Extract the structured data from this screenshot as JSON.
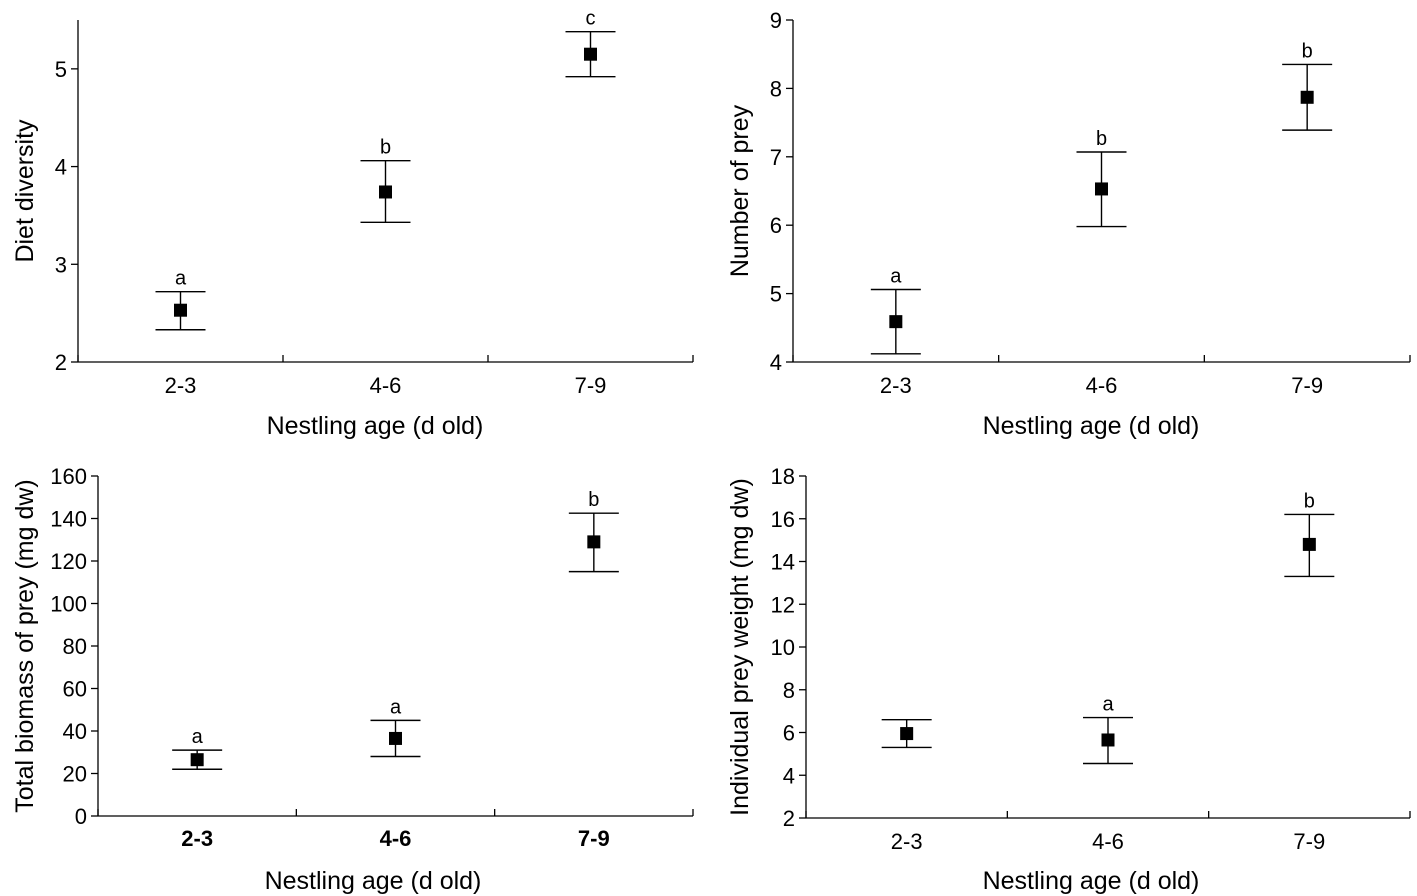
{
  "chart_data": [
    {
      "type": "scatter",
      "title": "",
      "xlabel": "Nestling age (d old)",
      "ylabel": "Diet diversity",
      "categories": [
        "2-3",
        "4-6",
        "7-9"
      ],
      "values": [
        2.53,
        3.74,
        5.15
      ],
      "error_low": [
        2.33,
        3.43,
        4.92
      ],
      "error_high": [
        2.72,
        4.06,
        5.38
      ],
      "labels": [
        "a",
        "b",
        "c"
      ],
      "ylim": [
        2,
        5.5
      ],
      "yticks": [
        2,
        3,
        4,
        5
      ],
      "ytick_labels": [
        "2",
        "3",
        "4",
        "5"
      ],
      "grid": false,
      "bold_x_ticks": false
    },
    {
      "type": "scatter",
      "title": "",
      "xlabel": "Nestling age (d old)",
      "ylabel": "Number of prey",
      "categories": [
        "2-3",
        "4-6",
        "7-9"
      ],
      "values": [
        4.59,
        6.53,
        7.87
      ],
      "error_low": [
        4.12,
        5.98,
        7.39
      ],
      "error_high": [
        5.06,
        7.07,
        8.35
      ],
      "labels": [
        "a",
        "b",
        "b"
      ],
      "ylim": [
        4,
        9
      ],
      "yticks": [
        4,
        5,
        6,
        7,
        8,
        9
      ],
      "ytick_labels": [
        "4",
        "5",
        "6",
        "7",
        "8",
        "9"
      ],
      "grid": false,
      "bold_x_ticks": false
    },
    {
      "type": "scatter",
      "title": "",
      "xlabel": "Nestling age (d old)",
      "ylabel": "Total biomass of prey (mg dw)",
      "categories": [
        "2-3",
        "4-6",
        "7-9"
      ],
      "values": [
        26.5,
        36.5,
        129
      ],
      "error_low": [
        22,
        28,
        115
      ],
      "error_high": [
        31,
        45,
        142.5
      ],
      "labels": [
        "a",
        "a",
        "b"
      ],
      "ylim": [
        0,
        160
      ],
      "yticks": [
        0,
        20,
        40,
        60,
        80,
        100,
        120,
        140,
        160
      ],
      "ytick_labels": [
        "0",
        "20",
        "40",
        "60",
        "80",
        "100",
        "120",
        "140",
        "160"
      ],
      "grid": false,
      "bold_x_ticks": true
    },
    {
      "type": "scatter",
      "title": "",
      "xlabel": "Nestling age (d old)",
      "ylabel": "Individual prey weight (mg dw)",
      "categories": [
        "2-3",
        "4-6",
        "7-9"
      ],
      "values": [
        5.95,
        5.65,
        14.8
      ],
      "error_low": [
        5.3,
        4.55,
        13.3
      ],
      "error_high": [
        6.6,
        6.7,
        16.2
      ],
      "labels": [
        "",
        "a",
        "b"
      ],
      "ylim": [
        2,
        18
      ],
      "yticks": [
        2,
        4,
        6,
        8,
        10,
        12,
        14,
        16,
        18
      ],
      "ytick_labels": [
        "2",
        "4",
        "6",
        "8",
        "10",
        "12",
        "14",
        "16",
        "18"
      ],
      "grid": false,
      "bold_x_ticks": false
    }
  ]
}
